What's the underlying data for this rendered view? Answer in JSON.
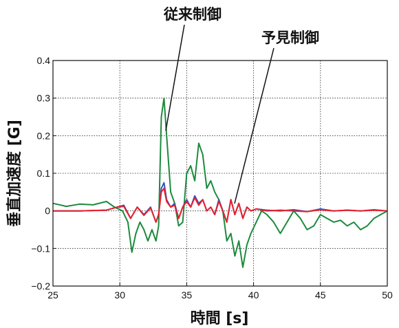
{
  "chart_data": {
    "type": "line",
    "title": "",
    "xlabel": "時間 [s]",
    "ylabel": "垂直加速度 [G]",
    "xlim": [
      25,
      50
    ],
    "ylim": [
      -0.2,
      0.4
    ],
    "grid": true,
    "x_ticks": [
      "25",
      "30",
      "35",
      "40",
      "45",
      "50"
    ],
    "y_ticks": [
      "−0.2",
      "−0.1",
      "0",
      "0.1",
      "0.2",
      "0.3",
      "0.4"
    ],
    "annotations": [
      {
        "text": "従来制御",
        "target": [
          33.3,
          0.21
        ]
      },
      {
        "text": "予見制御",
        "target": [
          38.4,
          0.02
        ]
      }
    ],
    "series": [
      {
        "color": "#1b8a3c",
        "x": [
          25,
          26,
          27,
          28,
          29,
          29.6,
          30.2,
          30.6,
          30.9,
          31.2,
          31.5,
          31.8,
          32.1,
          32.4,
          32.7,
          32.9,
          33.1,
          33.3,
          33.5,
          33.8,
          34.1,
          34.4,
          34.7,
          35.0,
          35.3,
          35.6,
          35.9,
          36.2,
          36.5,
          36.8,
          37.1,
          37.4,
          37.7,
          38.0,
          38.3,
          38.6,
          38.9,
          39.2,
          39.5,
          39.8,
          40.2,
          40.6,
          41.0,
          41.5,
          42.0,
          42.5,
          43.0,
          43.5,
          44.0,
          44.5,
          45.0,
          45.5,
          46.0,
          46.5,
          47.0,
          47.5,
          48.0,
          48.5,
          49.0,
          49.5,
          50.0
        ],
        "values": [
          0.02,
          0.012,
          0.018,
          0.016,
          0.025,
          0.01,
          0.0,
          -0.03,
          -0.11,
          -0.06,
          -0.03,
          -0.05,
          -0.08,
          -0.05,
          -0.08,
          -0.04,
          0.25,
          0.3,
          0.2,
          0.05,
          0.02,
          -0.04,
          -0.03,
          0.1,
          0.12,
          0.08,
          0.18,
          0.15,
          0.06,
          0.08,
          0.05,
          0.03,
          0.0,
          -0.08,
          -0.06,
          -0.12,
          -0.08,
          -0.15,
          -0.09,
          -0.06,
          -0.03,
          0.0,
          -0.01,
          -0.03,
          -0.06,
          -0.03,
          0.0,
          -0.02,
          -0.05,
          -0.04,
          -0.01,
          -0.02,
          -0.03,
          -0.025,
          -0.04,
          -0.03,
          -0.05,
          -0.04,
          -0.02,
          -0.01,
          0.0
        ]
      },
      {
        "color": "#3a4fc2",
        "x": [
          25,
          27,
          29,
          29.8,
          30.3,
          30.8,
          31.3,
          31.8,
          32.3,
          32.7,
          32.9,
          33.1,
          33.3,
          33.5,
          33.8,
          34.1,
          34.4,
          34.7,
          35.0,
          35.3,
          35.6,
          35.9,
          36.2,
          36.5,
          36.8,
          37.1,
          37.4,
          37.7,
          38.0,
          38.3,
          38.6,
          38.9,
          39.2,
          39.5,
          39.8,
          40.2,
          41.0,
          42.0,
          43.0,
          44.0,
          45.0,
          46.0,
          47.0,
          48.0,
          49.0,
          50.0
        ],
        "values": [
          0.0,
          0.0,
          0.002,
          0.01,
          0.015,
          -0.02,
          0.01,
          -0.01,
          0.01,
          -0.03,
          -0.01,
          0.06,
          0.075,
          0.03,
          0.01,
          0.02,
          -0.02,
          0.01,
          0.03,
          0.01,
          0.04,
          0.02,
          0.03,
          0.0,
          0.01,
          -0.01,
          0.03,
          0.0,
          -0.03,
          0.03,
          -0.01,
          0.02,
          -0.02,
          0.01,
          0.0,
          0.005,
          0.002,
          0.0,
          0.003,
          -0.002,
          0.005,
          0.0,
          0.002,
          0.0,
          0.003,
          0.0
        ]
      },
      {
        "color": "#e8202a",
        "x": [
          25,
          27,
          29,
          29.8,
          30.3,
          30.8,
          31.3,
          31.8,
          32.3,
          32.7,
          32.9,
          33.1,
          33.3,
          33.5,
          33.8,
          34.1,
          34.4,
          34.7,
          35.0,
          35.3,
          35.6,
          35.9,
          36.2,
          36.5,
          36.8,
          37.1,
          37.4,
          37.7,
          38.0,
          38.3,
          38.6,
          38.9,
          39.2,
          39.5,
          39.8,
          40.2,
          41.0,
          42.0,
          43.0,
          44.0,
          45.0,
          46.0,
          47.0,
          48.0,
          49.0,
          50.0
        ],
        "values": [
          0.0,
          0.0,
          0.002,
          0.01,
          0.012,
          -0.02,
          0.01,
          -0.012,
          0.008,
          -0.03,
          -0.01,
          0.05,
          0.06,
          0.025,
          0.01,
          0.015,
          -0.02,
          0.01,
          0.025,
          0.01,
          0.035,
          0.015,
          0.03,
          0.0,
          0.01,
          -0.01,
          0.025,
          0.0,
          -0.03,
          0.03,
          -0.01,
          0.02,
          -0.02,
          0.01,
          0.0,
          0.005,
          0.0,
          0.002,
          0.0,
          -0.002,
          0.003,
          0.0,
          0.002,
          0.0,
          0.002,
          0.0
        ]
      }
    ]
  }
}
